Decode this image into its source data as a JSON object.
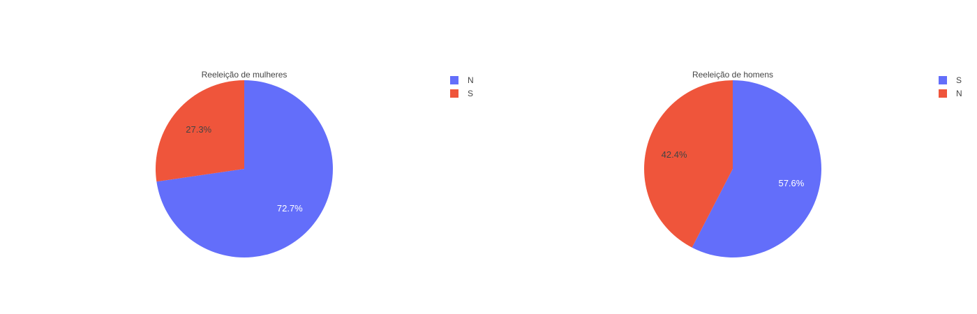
{
  "chart_data": [
    {
      "type": "pie",
      "title": "Reeleição de mulheres",
      "slices": [
        {
          "label": "N",
          "value": 72.7,
          "text": "72.7%",
          "color": "#636efa",
          "text_color": "#ffffff"
        },
        {
          "label": "S",
          "value": 27.3,
          "text": "27.3%",
          "color": "#ef553b",
          "text_color": "#444444"
        }
      ],
      "legend": [
        "N",
        "S"
      ],
      "legend_position": "right"
    },
    {
      "type": "pie",
      "title": "Reeleição de homens",
      "slices": [
        {
          "label": "S",
          "value": 57.6,
          "text": "57.6%",
          "color": "#636efa",
          "text_color": "#ffffff"
        },
        {
          "label": "N",
          "value": 42.4,
          "text": "42.4%",
          "color": "#ef553b",
          "text_color": "#444444"
        }
      ],
      "legend": [
        "S",
        "N"
      ],
      "legend_position": "right"
    }
  ]
}
